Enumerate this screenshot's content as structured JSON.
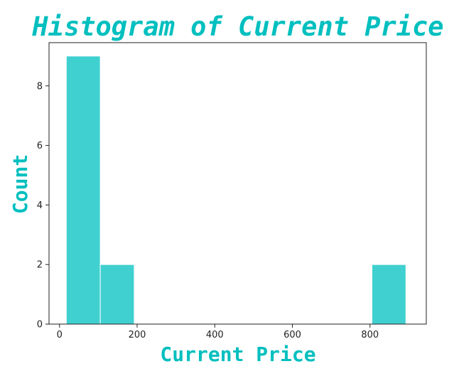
{
  "chart_data": {
    "type": "histogram",
    "title": "Histogram of Current Price",
    "xlabel": "Current Price",
    "ylabel": "Count",
    "bins": [
      {
        "start": 17.5,
        "end": 105.0,
        "count": 9
      },
      {
        "start": 105.0,
        "end": 192.5,
        "count": 2
      },
      {
        "start": 192.5,
        "end": 280.0,
        "count": 0
      },
      {
        "start": 280.0,
        "end": 367.5,
        "count": 0
      },
      {
        "start": 367.5,
        "end": 455.0,
        "count": 0
      },
      {
        "start": 455.0,
        "end": 542.5,
        "count": 0
      },
      {
        "start": 542.5,
        "end": 630.0,
        "count": 0
      },
      {
        "start": 630.0,
        "end": 717.5,
        "count": 0
      },
      {
        "start": 717.5,
        "end": 805.0,
        "count": 0
      },
      {
        "start": 805.0,
        "end": 892.5,
        "count": 2
      }
    ],
    "xticks": [
      0,
      200,
      400,
      600,
      800
    ],
    "yticks": [
      0,
      2,
      4,
      6,
      8
    ],
    "xlim": [
      -27,
      945
    ],
    "ylim": [
      0,
      9.45
    ],
    "grid": false,
    "colors": {
      "bar": "#40d0d0",
      "title": "#00bfbf",
      "axis_label": "#00bfbf"
    }
  }
}
